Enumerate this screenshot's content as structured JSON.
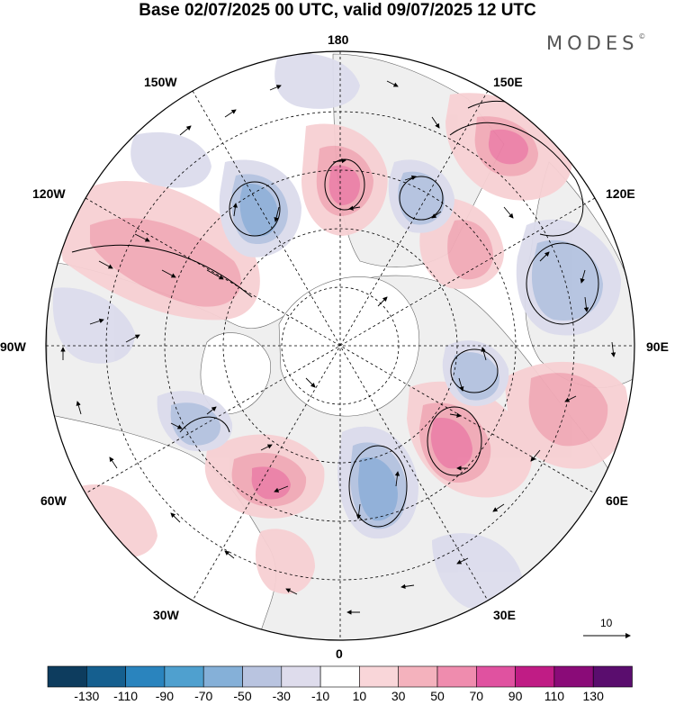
{
  "title": "Base 02/07/2025 00 UTC, valid 09/07/2025 12 UTC",
  "brand": "MODES",
  "brand_mark": "©",
  "longitude_labels": {
    "top": "180",
    "top_left": "150W",
    "top_right": "150E",
    "upper_left": "120W",
    "upper_right": "120E",
    "left": "90W",
    "right": "90E",
    "lower_left": "60W",
    "lower_right": "60E",
    "bottom_left": "30W",
    "bottom_right": "30E",
    "bottom": "0"
  },
  "vector_scale": {
    "label": "10"
  },
  "colorbar": {
    "ticks": [
      "-130",
      "-110",
      "-90",
      "-70",
      "-50",
      "-30",
      "-10",
      "10",
      "30",
      "50",
      "70",
      "90",
      "110",
      "130"
    ],
    "colors": [
      "#0d3c5e",
      "#155f8f",
      "#2a84be",
      "#4fa0cf",
      "#85b0d8",
      "#b9c4e0",
      "#dedcec",
      "#ffffff",
      "#f9d6d9",
      "#f4b2bd",
      "#ef8cae",
      "#e052a0",
      "#c01c85",
      "#8a0b78",
      "#5a0d6e"
    ]
  },
  "anomaly_colors": {
    "pos_light": "#f7d0d3",
    "pos_mid": "#f1a9b6",
    "pos_strong": "#eb7fa6",
    "neg_light": "#dcdcec",
    "neg_mid": "#b4c2e0",
    "neg_strong": "#8eaed8",
    "land": "#efefef"
  }
}
